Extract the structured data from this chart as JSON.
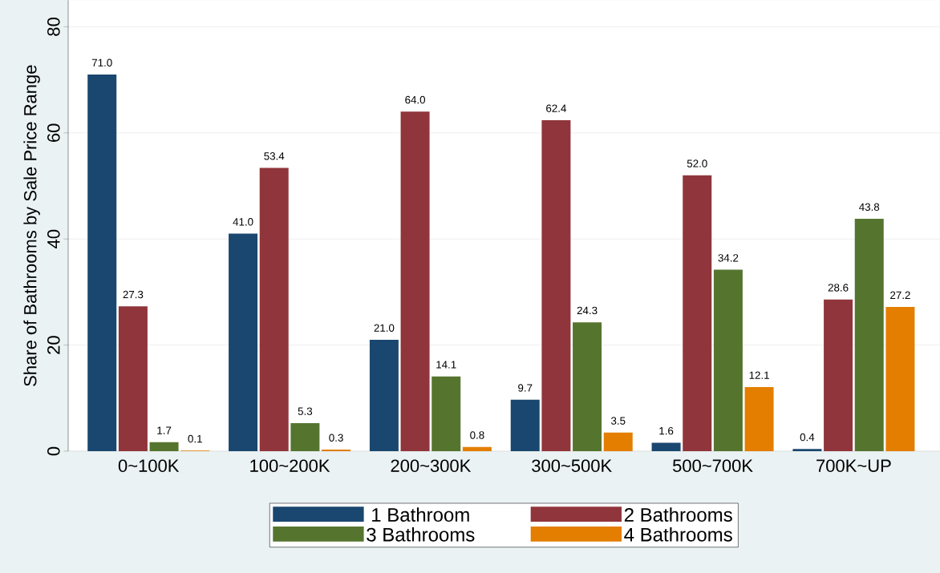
{
  "chart_data": {
    "type": "bar",
    "ylabel": "Share of Bathrooms by Sale Price Range",
    "categories": [
      "0~100K",
      "100~200K",
      "200~300K",
      "300~500K",
      "500~700K",
      "700K~UP"
    ],
    "series": [
      {
        "name": "1 Bathroom",
        "color": "#1a476f",
        "values": [
          71.0,
          41.0,
          21.0,
          9.7,
          1.6,
          0.4
        ],
        "value_labels": [
          "71.0",
          "41.0",
          "21.0",
          "9.7",
          "1.6",
          "0.4"
        ]
      },
      {
        "name": "2 Bathrooms",
        "color": "#90353b",
        "values": [
          27.3,
          53.4,
          64.0,
          62.4,
          52.0,
          28.6
        ],
        "value_labels": [
          "27.3",
          "53.4",
          "64.0",
          "62.4",
          "52.0",
          "28.6"
        ]
      },
      {
        "name": "3 Bathrooms",
        "color": "#55752f",
        "values": [
          1.7,
          5.3,
          14.1,
          24.3,
          34.2,
          43.8
        ],
        "value_labels": [
          "1.7",
          "5.3",
          "14.1",
          "24.3",
          "34.2",
          "43.8"
        ]
      },
      {
        "name": "4 Bathrooms",
        "color": "#e37e00",
        "values": [
          0.1,
          0.3,
          0.8,
          3.5,
          12.1,
          27.2
        ],
        "value_labels": [
          "0.1",
          "0.3",
          "0.8",
          "3.5",
          "12.1",
          "27.2"
        ]
      }
    ],
    "ylim": [
      0,
      85
    ],
    "yticks": [
      0,
      20,
      40,
      60,
      80
    ],
    "grid": "y",
    "legend": "bottom"
  }
}
